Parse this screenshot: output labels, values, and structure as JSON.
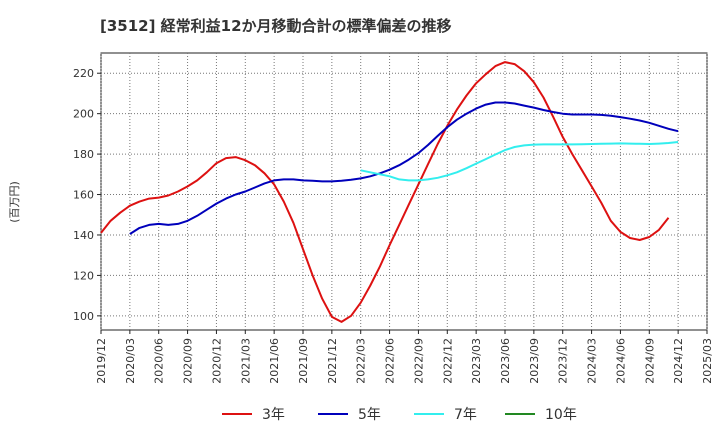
{
  "chart_data": {
    "type": "line",
    "title": "[3512]  経常利益12か月移動合計の標準偏差の推移",
    "ylabel": "(百万円)",
    "ylim": [
      93,
      230
    ],
    "yticks": [
      100,
      120,
      140,
      160,
      180,
      200,
      220
    ],
    "xlim": [
      "2019/12",
      "2025/03"
    ],
    "xticks": [
      "2019/12",
      "2020/03",
      "2020/06",
      "2020/09",
      "2020/12",
      "2021/03",
      "2021/06",
      "2021/09",
      "2021/12",
      "2022/03",
      "2022/06",
      "2022/09",
      "2022/12",
      "2023/03",
      "2023/06",
      "2023/09",
      "2023/12",
      "2024/03",
      "2024/06",
      "2024/09",
      "2024/12",
      "2025/03"
    ],
    "grid": true,
    "legend_position": "bottom",
    "series": [
      {
        "name": "3年",
        "color": "#dd1111",
        "points": [
          [
            "2019/12",
            141
          ],
          [
            "2020/01",
            147
          ],
          [
            "2020/02",
            151
          ],
          [
            "2020/03",
            154.5
          ],
          [
            "2020/04",
            156.5
          ],
          [
            "2020/05",
            158
          ],
          [
            "2020/06",
            158.5
          ],
          [
            "2020/07",
            159.5
          ],
          [
            "2020/08",
            161.5
          ],
          [
            "2020/09",
            164
          ],
          [
            "2020/10",
            167
          ],
          [
            "2020/11",
            171
          ],
          [
            "2020/12",
            175.5
          ],
          [
            "2021/01",
            178
          ],
          [
            "2021/02",
            178.5
          ],
          [
            "2021/03",
            177
          ],
          [
            "2021/04",
            174.5
          ],
          [
            "2021/05",
            170.5
          ],
          [
            "2021/06",
            165
          ],
          [
            "2021/07",
            156.5
          ],
          [
            "2021/08",
            146
          ],
          [
            "2021/09",
            133
          ],
          [
            "2021/10",
            120
          ],
          [
            "2021/11",
            108.5
          ],
          [
            "2021/12",
            99.5
          ],
          [
            "2022/01",
            97
          ],
          [
            "2022/02",
            100
          ],
          [
            "2022/03",
            106.5
          ],
          [
            "2022/04",
            115
          ],
          [
            "2022/05",
            124.5
          ],
          [
            "2022/06",
            135
          ],
          [
            "2022/07",
            145
          ],
          [
            "2022/08",
            155
          ],
          [
            "2022/09",
            165
          ],
          [
            "2022/10",
            175
          ],
          [
            "2022/11",
            185
          ],
          [
            "2022/12",
            194
          ],
          [
            "2023/01",
            202
          ],
          [
            "2023/02",
            209
          ],
          [
            "2023/03",
            215
          ],
          [
            "2023/04",
            219.5
          ],
          [
            "2023/05",
            223.5
          ],
          [
            "2023/06",
            225.5
          ],
          [
            "2023/07",
            224.5
          ],
          [
            "2023/08",
            221
          ],
          [
            "2023/09",
            215.5
          ],
          [
            "2023/10",
            208
          ],
          [
            "2023/11",
            198.5
          ],
          [
            "2023/12",
            188.5
          ],
          [
            "2024/01",
            180
          ],
          [
            "2024/02",
            172
          ],
          [
            "2024/03",
            164
          ],
          [
            "2024/04",
            156
          ],
          [
            "2024/05",
            147
          ],
          [
            "2024/06",
            141.5
          ],
          [
            "2024/07",
            138.5
          ],
          [
            "2024/08",
            137.5
          ],
          [
            "2024/09",
            139
          ],
          [
            "2024/10",
            142.5
          ],
          [
            "2024/11",
            148.5
          ]
        ]
      },
      {
        "name": "5年",
        "color": "#0000bb",
        "points": [
          [
            "2020/03",
            140.5
          ],
          [
            "2020/04",
            143.5
          ],
          [
            "2020/05",
            145
          ],
          [
            "2020/06",
            145.5
          ],
          [
            "2020/07",
            145
          ],
          [
            "2020/08",
            145.5
          ],
          [
            "2020/09",
            147
          ],
          [
            "2020/10",
            149.5
          ],
          [
            "2020/11",
            152.5
          ],
          [
            "2020/12",
            155.5
          ],
          [
            "2021/01",
            158
          ],
          [
            "2021/02",
            160
          ],
          [
            "2021/03",
            161.5
          ],
          [
            "2021/04",
            163.5
          ],
          [
            "2021/05",
            165.5
          ],
          [
            "2021/06",
            167
          ],
          [
            "2021/07",
            167.5
          ],
          [
            "2021/08",
            167.5
          ],
          [
            "2021/09",
            167
          ],
          [
            "2021/10",
            166.8
          ],
          [
            "2021/11",
            166.5
          ],
          [
            "2021/12",
            166.5
          ],
          [
            "2022/01",
            166.8
          ],
          [
            "2022/02",
            167.3
          ],
          [
            "2022/03",
            168
          ],
          [
            "2022/04",
            169
          ],
          [
            "2022/05",
            170.5
          ],
          [
            "2022/06",
            172.3
          ],
          [
            "2022/07",
            174.5
          ],
          [
            "2022/08",
            177.3
          ],
          [
            "2022/09",
            180.5
          ],
          [
            "2022/10",
            184.5
          ],
          [
            "2022/11",
            189
          ],
          [
            "2022/12",
            193.3
          ],
          [
            "2023/01",
            197
          ],
          [
            "2023/02",
            200
          ],
          [
            "2023/03",
            202.5
          ],
          [
            "2023/04",
            204.5
          ],
          [
            "2023/05",
            205.5
          ],
          [
            "2023/06",
            205.5
          ],
          [
            "2023/07",
            205
          ],
          [
            "2023/08",
            204
          ],
          [
            "2023/09",
            203
          ],
          [
            "2023/10",
            201.8
          ],
          [
            "2023/11",
            200.8
          ],
          [
            "2023/12",
            200
          ],
          [
            "2024/01",
            199.6
          ],
          [
            "2024/02",
            199.6
          ],
          [
            "2024/03",
            199.6
          ],
          [
            "2024/04",
            199.4
          ],
          [
            "2024/05",
            199
          ],
          [
            "2024/06",
            198.3
          ],
          [
            "2024/07",
            197.5
          ],
          [
            "2024/08",
            196.6
          ],
          [
            "2024/09",
            195.5
          ],
          [
            "2024/10",
            194
          ],
          [
            "2024/11",
            192.5
          ],
          [
            "2024/12",
            191.3
          ]
        ]
      },
      {
        "name": "7年",
        "color": "#33eeee",
        "points": [
          [
            "2022/03",
            172
          ],
          [
            "2022/04",
            171
          ],
          [
            "2022/05",
            170
          ],
          [
            "2022/06",
            169
          ],
          [
            "2022/07",
            167.5
          ],
          [
            "2022/08",
            167
          ],
          [
            "2022/09",
            167
          ],
          [
            "2022/10",
            167.5
          ],
          [
            "2022/11",
            168.3
          ],
          [
            "2022/12",
            169.5
          ],
          [
            "2023/01",
            171
          ],
          [
            "2023/02",
            173
          ],
          [
            "2023/03",
            175.3
          ],
          [
            "2023/04",
            177.5
          ],
          [
            "2023/05",
            179.8
          ],
          [
            "2023/06",
            182
          ],
          [
            "2023/07",
            183.5
          ],
          [
            "2023/08",
            184.3
          ],
          [
            "2023/09",
            184.7
          ],
          [
            "2023/10",
            184.8
          ],
          [
            "2023/11",
            184.8
          ],
          [
            "2023/12",
            184.8
          ],
          [
            "2024/01",
            184.8
          ],
          [
            "2024/02",
            184.9
          ],
          [
            "2024/03",
            185
          ],
          [
            "2024/04",
            185.1
          ],
          [
            "2024/05",
            185.2
          ],
          [
            "2024/06",
            185.3
          ],
          [
            "2024/07",
            185.2
          ],
          [
            "2024/08",
            185.1
          ],
          [
            "2024/09",
            185
          ],
          [
            "2024/10",
            185.2
          ],
          [
            "2024/11",
            185.5
          ],
          [
            "2024/12",
            186
          ]
        ]
      },
      {
        "name": "10年",
        "color": "#228822",
        "points": []
      }
    ]
  }
}
